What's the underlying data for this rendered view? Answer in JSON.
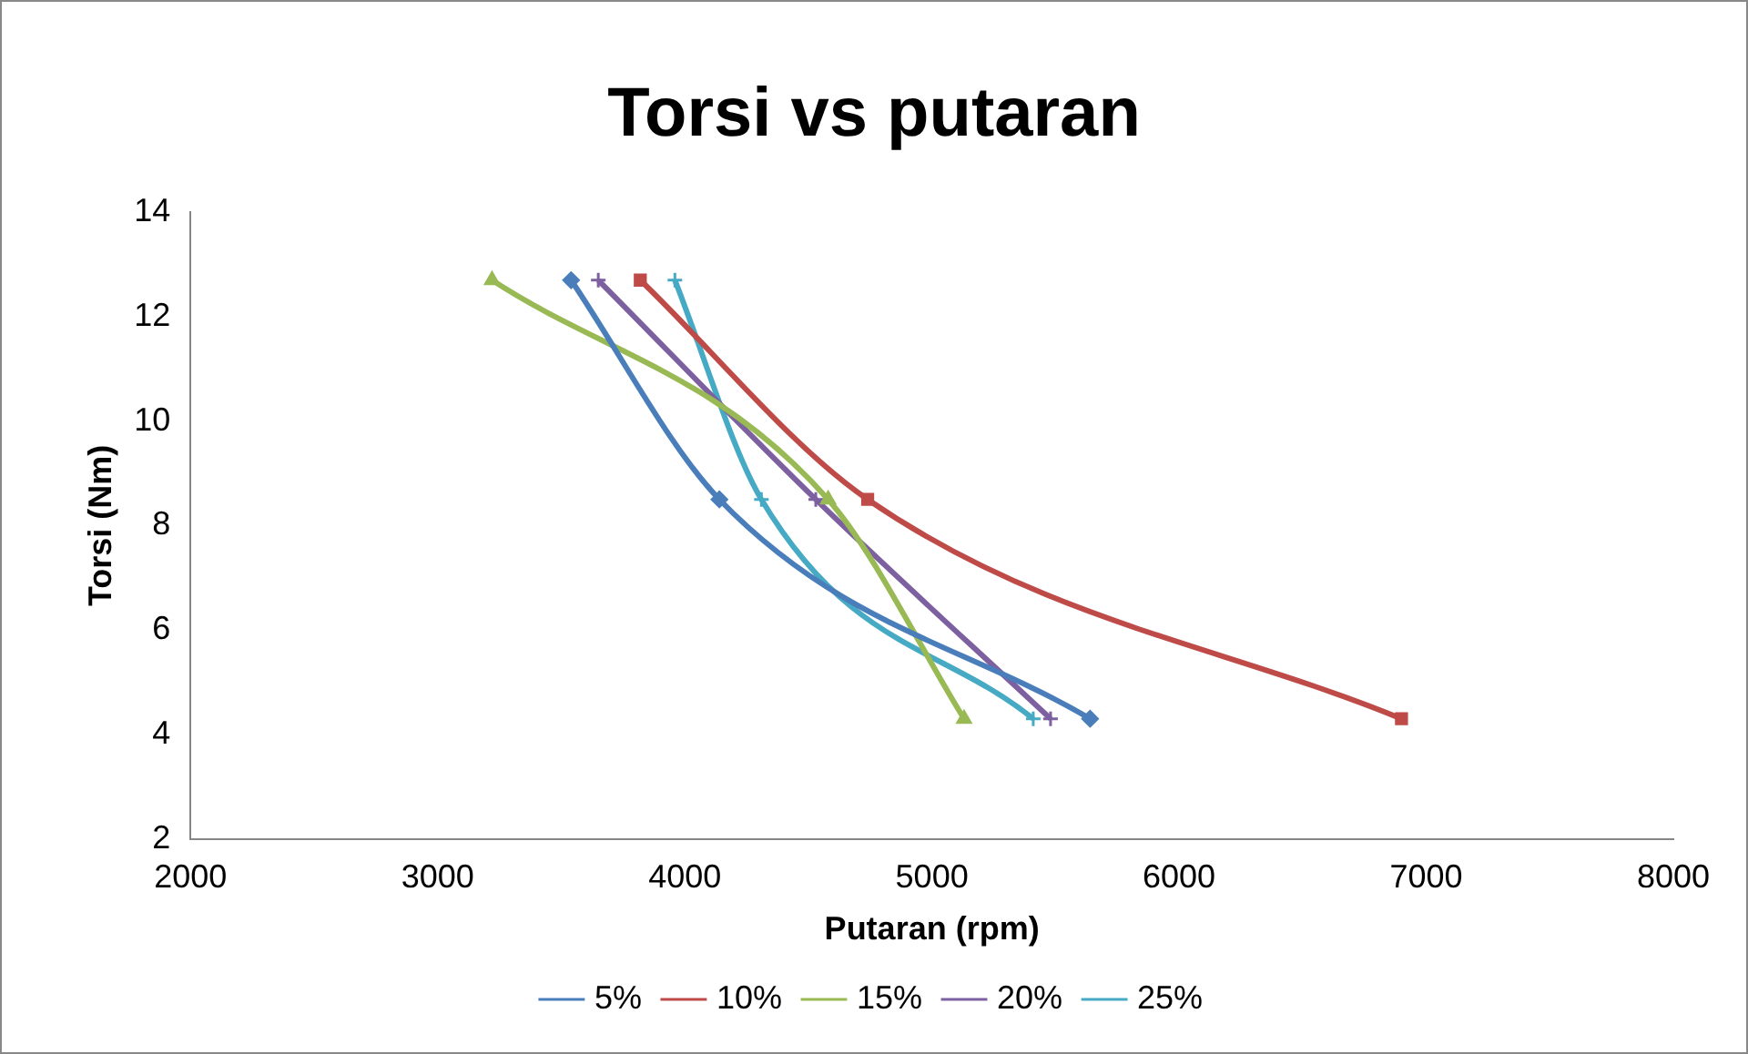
{
  "chart_data": {
    "type": "line",
    "title": "Torsi vs putaran",
    "xlabel": "Putaran (rpm)",
    "ylabel": "Torsi (Nm)",
    "xlim": [
      2000,
      8000
    ],
    "xticks": [
      2000,
      3000,
      4000,
      5000,
      6000,
      7000,
      8000
    ],
    "ylim": [
      2,
      14
    ],
    "yticks": [
      2,
      4,
      6,
      8,
      10,
      12,
      14
    ],
    "grid": false,
    "legend": "bottom",
    "series": [
      {
        "name": "5%",
        "color": "#4a7ebb",
        "marker": "diamond",
        "x": [
          3540,
          4140,
          5640
        ],
        "values": [
          12.7,
          8.5,
          4.3
        ]
      },
      {
        "name": "10%",
        "color": "#be4b48",
        "marker": "square",
        "x": [
          3820,
          4740,
          6900
        ],
        "values": [
          12.7,
          8.5,
          4.3
        ]
      },
      {
        "name": "15%",
        "color": "#98b954",
        "marker": "triangle",
        "x": [
          3220,
          4580,
          5130
        ],
        "values": [
          12.7,
          8.5,
          4.3
        ]
      },
      {
        "name": "20%",
        "color": "#7d60a0",
        "marker": "cross",
        "x": [
          3650,
          4530,
          5480
        ],
        "values": [
          12.7,
          8.5,
          4.3
        ]
      },
      {
        "name": "25%",
        "color": "#46aac5",
        "marker": "cross",
        "x": [
          3960,
          4310,
          5410
        ],
        "values": [
          12.7,
          8.5,
          4.3
        ]
      }
    ]
  }
}
